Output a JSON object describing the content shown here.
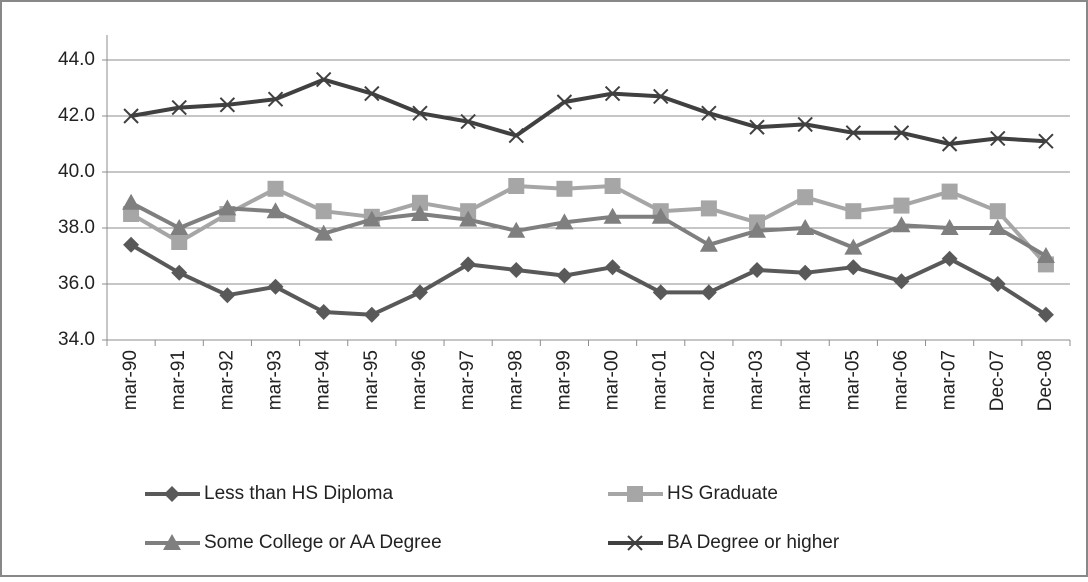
{
  "chart_data": {
    "type": "line",
    "categories": [
      "mar-90",
      "mar-91",
      "mar-92",
      "mar-93",
      "mar-94",
      "mar-95",
      "mar-96",
      "mar-97",
      "mar-98",
      "mar-99",
      "mar-00",
      "mar-01",
      "mar-02",
      "mar-03",
      "mar-04",
      "mar-05",
      "mar-06",
      "mar-07",
      "Dec-07",
      "Dec-08"
    ],
    "series": [
      {
        "name": "Less than HS Diploma",
        "color": "#595959",
        "marker": "diamond",
        "values": [
          37.4,
          36.4,
          35.6,
          35.9,
          35.0,
          34.9,
          35.7,
          36.7,
          36.5,
          36.3,
          36.6,
          35.7,
          35.7,
          36.5,
          36.4,
          36.6,
          36.1,
          36.9,
          36.0,
          34.9
        ]
      },
      {
        "name": "HS Graduate",
        "color": "#a6a6a6",
        "marker": "square",
        "values": [
          38.5,
          37.5,
          38.5,
          39.4,
          38.6,
          38.4,
          38.9,
          38.6,
          39.5,
          39.4,
          39.5,
          38.6,
          38.7,
          38.2,
          39.1,
          38.6,
          38.8,
          39.3,
          38.6,
          36.7
        ]
      },
      {
        "name": "Some College or AA Degree",
        "color": "#7f7f7f",
        "marker": "triangle",
        "values": [
          38.9,
          38.0,
          38.7,
          38.6,
          37.8,
          38.3,
          38.5,
          38.3,
          37.9,
          38.2,
          38.4,
          38.4,
          37.4,
          37.9,
          38.0,
          37.3,
          38.1,
          38.0,
          38.0,
          37.0
        ]
      },
      {
        "name": "BA Degree or higher",
        "color": "#404040",
        "marker": "x",
        "values": [
          42.0,
          42.3,
          42.4,
          42.6,
          43.3,
          42.8,
          42.1,
          41.8,
          41.3,
          42.5,
          42.8,
          42.7,
          42.1,
          41.6,
          41.7,
          41.4,
          41.4,
          41.0,
          41.2,
          41.1
        ]
      }
    ],
    "ylim": [
      34,
      44
    ],
    "yticks": [
      {
        "value": 34,
        "label": "34.0"
      },
      {
        "value": 36,
        "label": "36.0"
      },
      {
        "value": 38,
        "label": "38.0"
      },
      {
        "value": 40,
        "label": "40.0"
      },
      {
        "value": 42,
        "label": "42.0"
      },
      {
        "value": 44,
        "label": "44.0"
      }
    ],
    "grid": true
  }
}
